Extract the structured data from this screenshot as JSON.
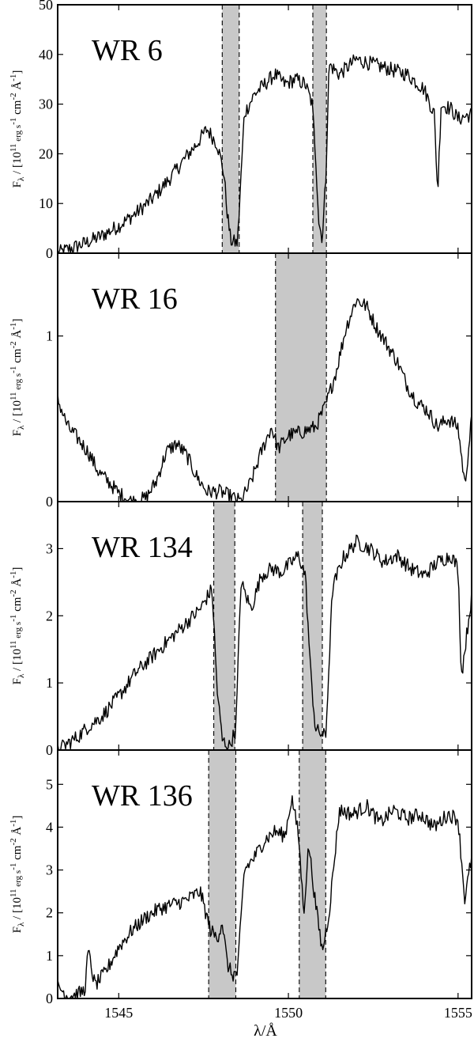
{
  "chart_data": {
    "type": "line",
    "xlabel": "λ/Å",
    "xlim": [
      1543.2,
      1555.4
    ],
    "xticks": [
      1545,
      1550,
      1555
    ],
    "panels": [
      {
        "label": "WR 6",
        "ylabel_parts": {
          "main": "F",
          "sub": "λ",
          "rest": " / [10",
          "exp": "11",
          "unit": " erg s",
          "u1": "-1",
          "cm": " cm",
          "u2": "-2",
          "A": " Å",
          "u3": "-1",
          "close": "]"
        },
        "ylim": [
          0,
          50
        ],
        "yticks": [
          0,
          10,
          20,
          30,
          40,
          50
        ],
        "bands": [
          [
            1548.05,
            1548.55
          ],
          [
            1550.72,
            1551.12
          ]
        ],
        "x": [
          1543.2,
          1543.6,
          1544.0,
          1544.5,
          1545.0,
          1545.5,
          1546.0,
          1546.5,
          1547.0,
          1547.3,
          1547.6,
          1547.9,
          1548.1,
          1548.2,
          1548.3,
          1548.5,
          1548.7,
          1549.0,
          1549.3,
          1549.6,
          1549.9,
          1550.2,
          1550.5,
          1550.7,
          1550.8,
          1550.9,
          1551.0,
          1551.1,
          1551.2,
          1551.5,
          1552.0,
          1552.5,
          1553.0,
          1553.5,
          1554.0,
          1554.3,
          1554.4,
          1554.5,
          1554.8,
          1555.0,
          1555.4
        ],
        "values": [
          0,
          1,
          2,
          3.5,
          5.5,
          8,
          11,
          15,
          19.5,
          22,
          25,
          22,
          16,
          8,
          2.5,
          2,
          28,
          32,
          34,
          36,
          34,
          35,
          34,
          30,
          20,
          6,
          3,
          15,
          38,
          36,
          39,
          38,
          37,
          36,
          33,
          28,
          12,
          30,
          29,
          27,
          28
        ]
      },
      {
        "label": "WR 16",
        "ylabel_parts": {
          "main": "F",
          "sub": "λ",
          "rest": " / [10",
          "exp": "11",
          "unit": " erg s",
          "u1": "-1",
          "cm": " cm",
          "u2": "-2",
          "A": " Å",
          "u3": "-1",
          "close": "]"
        },
        "ylim": [
          0,
          1.5
        ],
        "yticks": [
          0,
          1
        ],
        "bands": [
          [
            1549.62,
            1551.12
          ]
        ],
        "x": [
          1543.2,
          1543.5,
          1543.8,
          1544.1,
          1544.4,
          1544.7,
          1545.0,
          1545.4,
          1545.8,
          1546.1,
          1546.4,
          1546.7,
          1547.0,
          1547.3,
          1547.6,
          1548.0,
          1548.3,
          1548.6,
          1548.9,
          1549.2,
          1549.5,
          1549.7,
          1550.0,
          1550.4,
          1550.8,
          1551.1,
          1551.4,
          1551.7,
          1552.0,
          1552.3,
          1552.6,
          1552.9,
          1553.2,
          1553.5,
          1553.8,
          1554.1,
          1554.4,
          1554.7,
          1555.0,
          1555.2,
          1555.4
        ],
        "values": [
          0.62,
          0.45,
          0.38,
          0.3,
          0.18,
          0.12,
          0.05,
          0.0,
          0.02,
          0.12,
          0.3,
          0.35,
          0.28,
          0.15,
          0.06,
          0.06,
          0.03,
          0.0,
          0.12,
          0.3,
          0.45,
          0.32,
          0.4,
          0.42,
          0.45,
          0.58,
          0.78,
          1.05,
          1.22,
          1.18,
          1.05,
          0.95,
          0.85,
          0.7,
          0.6,
          0.55,
          0.45,
          0.5,
          0.45,
          0.1,
          0.5
        ]
      },
      {
        "label": "WR 134",
        "ylabel_parts": {
          "main": "F",
          "sub": "λ",
          "rest": " / [10",
          "exp": "11",
          "unit": " erg s",
          "u1": "-1",
          "cm": " cm",
          "u2": "-2",
          "A": " Å",
          "u3": "-1",
          "close": "]"
        },
        "ylim": [
          0,
          3.7
        ],
        "yticks": [
          0,
          1,
          2,
          3
        ],
        "bands": [
          [
            1547.8,
            1548.42
          ],
          [
            1550.42,
            1551.0
          ]
        ],
        "x": [
          1543.2,
          1543.5,
          1543.8,
          1544.1,
          1544.5,
          1545.0,
          1545.5,
          1546.0,
          1546.5,
          1547.0,
          1547.4,
          1547.75,
          1547.9,
          1548.05,
          1548.25,
          1548.45,
          1548.6,
          1548.9,
          1549.2,
          1549.5,
          1549.8,
          1550.1,
          1550.3,
          1550.5,
          1550.65,
          1550.8,
          1550.95,
          1551.1,
          1551.3,
          1551.6,
          1552.0,
          1552.4,
          1552.8,
          1553.2,
          1553.6,
          1554.0,
          1554.4,
          1554.8,
          1555.0,
          1555.1,
          1555.4
        ],
        "values": [
          0,
          0.1,
          0.2,
          0.35,
          0.5,
          0.8,
          1.15,
          1.4,
          1.65,
          1.9,
          2.1,
          2.4,
          0.9,
          0.15,
          0.05,
          0.3,
          2.5,
          2.1,
          2.6,
          2.7,
          2.65,
          2.8,
          2.9,
          2.6,
          1.2,
          0.3,
          0.25,
          0.2,
          2.4,
          2.85,
          3.1,
          3.0,
          2.8,
          2.9,
          2.7,
          2.6,
          2.8,
          2.9,
          2.7,
          1.1,
          2.3
        ]
      },
      {
        "label": "WR 136",
        "ylabel_parts": {
          "main": "F",
          "sub": "λ",
          "rest": " / [10",
          "exp": "11",
          "unit": " erg s",
          "u1": "-1",
          "cm": " cm",
          "u2": "-2",
          "A": " Å",
          "u3": "-1",
          "close": "]"
        },
        "ylim": [
          0,
          5.8
        ],
        "yticks": [
          0,
          1,
          2,
          3,
          4,
          5
        ],
        "bands": [
          [
            1547.65,
            1548.45
          ],
          [
            1550.32,
            1551.1
          ]
        ],
        "x": [
          1543.2,
          1543.5,
          1543.8,
          1544.0,
          1544.1,
          1544.3,
          1544.6,
          1545.0,
          1545.4,
          1545.8,
          1546.2,
          1546.6,
          1547.0,
          1547.4,
          1547.7,
          1547.9,
          1548.05,
          1548.2,
          1548.35,
          1548.5,
          1548.7,
          1549.0,
          1549.3,
          1549.6,
          1549.9,
          1550.1,
          1550.3,
          1550.45,
          1550.6,
          1550.8,
          1551.0,
          1551.2,
          1551.5,
          1551.9,
          1552.3,
          1552.7,
          1553.1,
          1553.5,
          1553.9,
          1554.3,
          1554.7,
          1555.0,
          1555.2,
          1555.4
        ],
        "values": [
          0.3,
          0.05,
          0.1,
          0.2,
          1.1,
          0.3,
          0.6,
          1.2,
          1.6,
          1.9,
          2.1,
          2.2,
          2.3,
          2.5,
          1.6,
          1.4,
          1.8,
          0.8,
          0.55,
          0.6,
          3.0,
          3.3,
          3.7,
          3.9,
          3.8,
          4.7,
          3.8,
          2.0,
          3.6,
          2.2,
          1.1,
          2.0,
          4.4,
          4.3,
          4.5,
          4.1,
          4.4,
          4.2,
          4.3,
          4.0,
          4.3,
          4.2,
          2.3,
          3.3
        ]
      }
    ]
  }
}
